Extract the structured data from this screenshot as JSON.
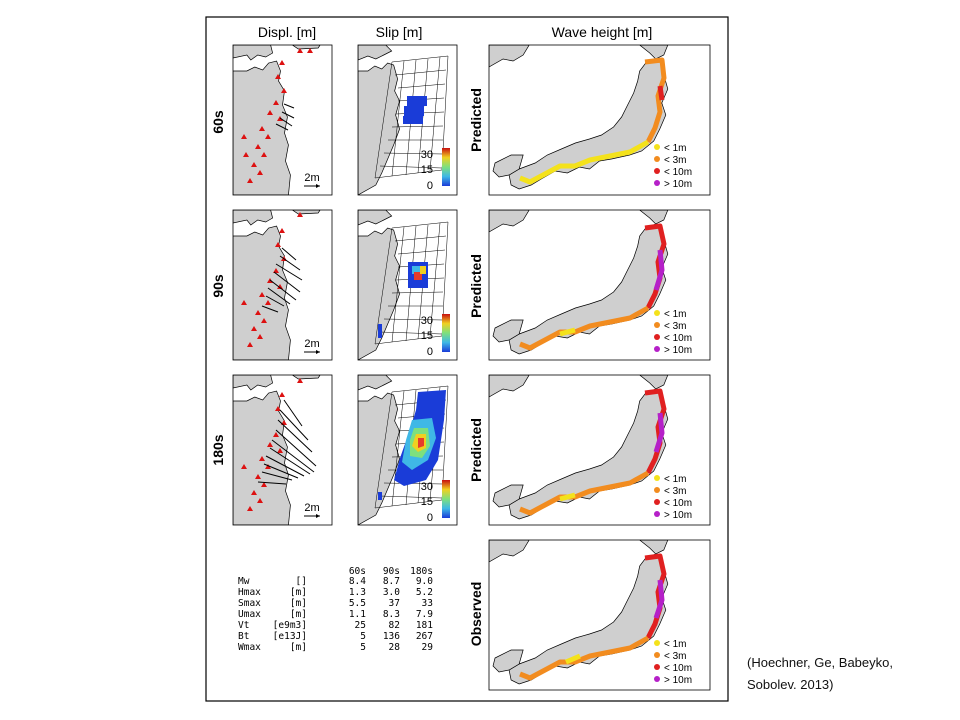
{
  "columns": {
    "displ": "Displ. [m]",
    "slip": "Slip [m]",
    "wave": "Wave height [m]"
  },
  "rows": [
    {
      "time": "60s",
      "label": "Predicted",
      "scale_arrow": "2m"
    },
    {
      "time": "90s",
      "label": "Predicted",
      "scale_arrow": "2m"
    },
    {
      "time": "180s",
      "label": "Predicted",
      "scale_arrow": "2m"
    },
    {
      "time": "",
      "label": "Observed",
      "scale_arrow": ""
    }
  ],
  "slip_colorbar": {
    "ticks": [
      "30",
      "15",
      "0"
    ]
  },
  "wave_legend": [
    {
      "label": "< 1m",
      "color": "#f4e21b"
    },
    {
      "label": "< 3m",
      "color": "#f28c1f"
    },
    {
      "label": "< 10m",
      "color": "#e02020"
    },
    {
      "label": "> 10m",
      "color": "#b520c8"
    }
  ],
  "table": {
    "header": [
      "60s",
      "90s",
      "180s"
    ],
    "rows": [
      {
        "name": "Mw",
        "unit": "[]",
        "values": [
          "8.4",
          "8.7",
          "9.0"
        ]
      },
      {
        "name": "Hmax",
        "unit": "[m]",
        "values": [
          "1.3",
          "3.0",
          "5.2"
        ]
      },
      {
        "name": "Smax",
        "unit": "[m]",
        "values": [
          "5.5",
          "37",
          "33"
        ]
      },
      {
        "name": "Umax",
        "unit": "[m]",
        "values": [
          "1.1",
          "8.3",
          "7.9"
        ]
      },
      {
        "name": "Vt",
        "unit": "[e9m3]",
        "values": [
          "25",
          "82",
          "181"
        ]
      },
      {
        "name": "Bt",
        "unit": "[e13J]",
        "values": [
          "5",
          "136",
          "267"
        ]
      },
      {
        "name": "Wmax",
        "unit": "[m]",
        "values": [
          "5",
          "28",
          "29"
        ]
      }
    ]
  },
  "citation": [
    "(Hoechner, Ge, Babeyko,",
    "Sobolev. 2013)"
  ],
  "colors": {
    "land": "#cfcfcf",
    "station": "#dd1111",
    "arrow": "#000000",
    "slip_low": "#1a3cd8",
    "slip_high": "#c81010"
  }
}
